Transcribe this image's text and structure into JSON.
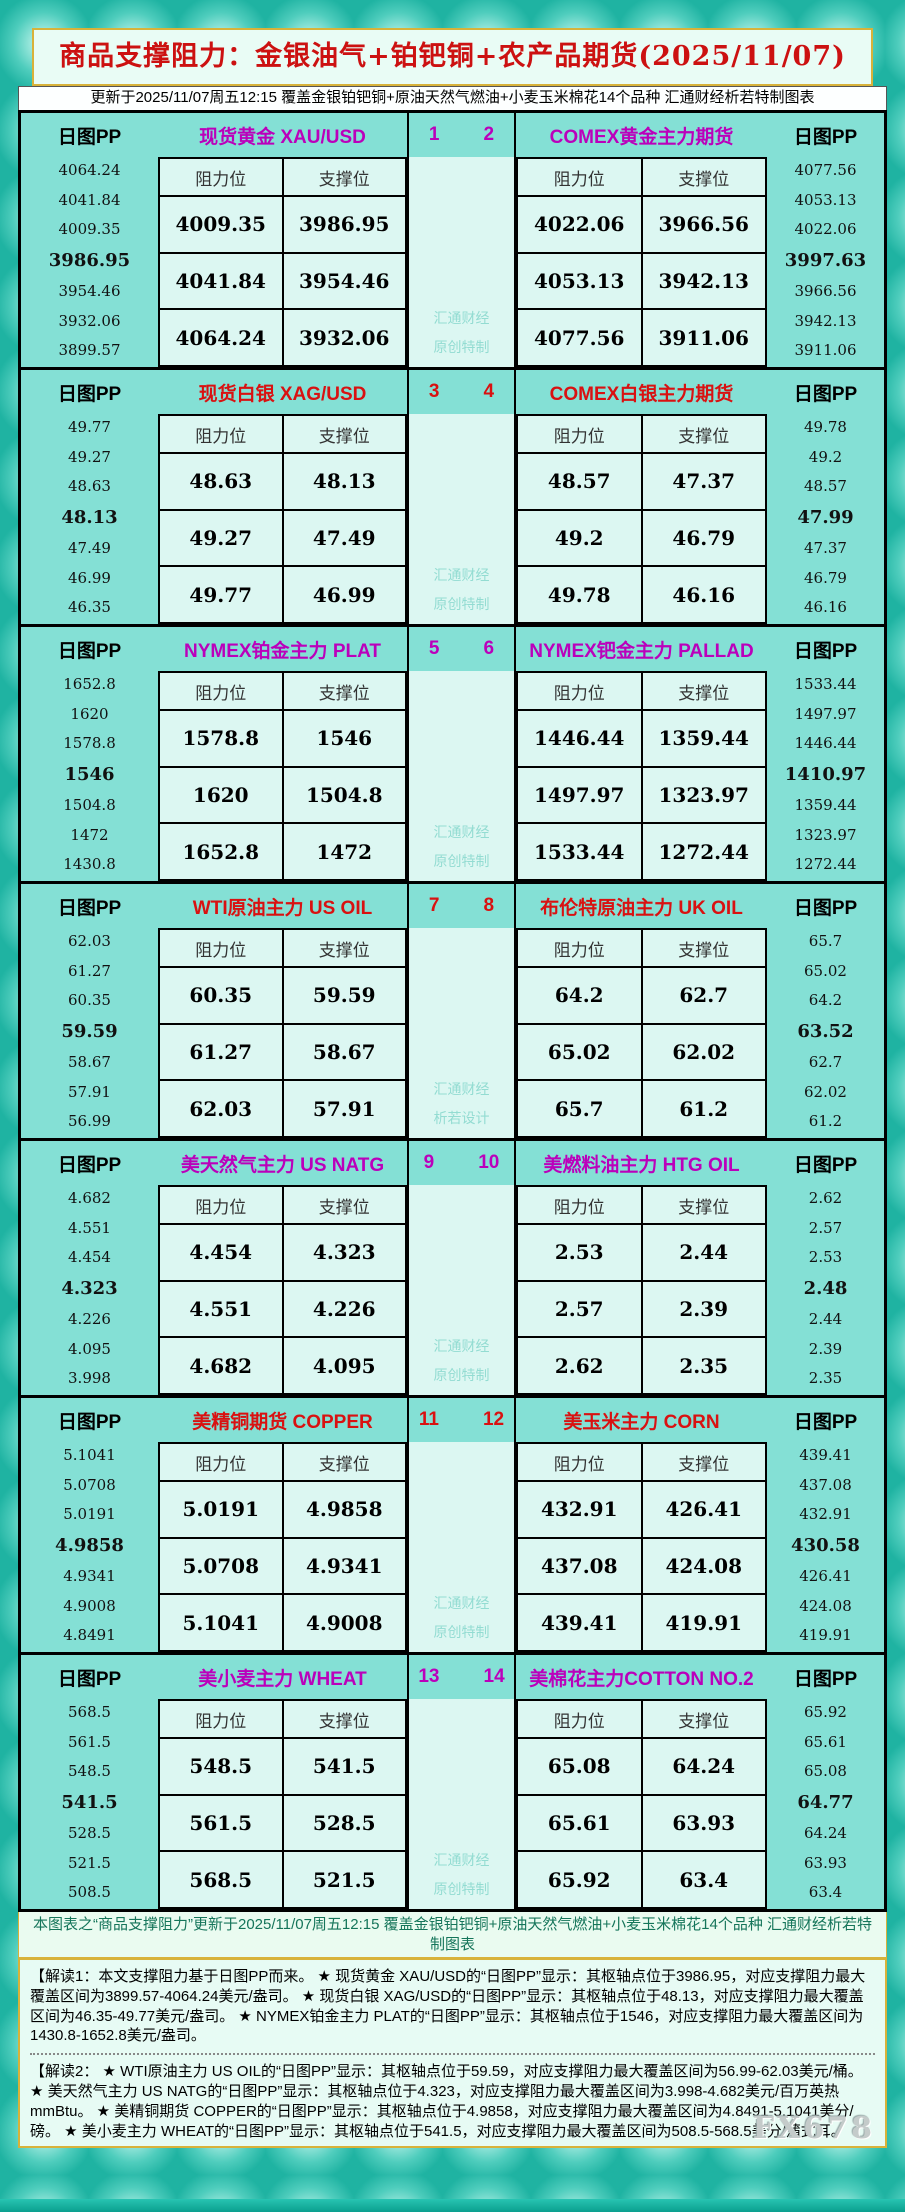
{
  "title": "商品支撑阻力：金银油气+铂钯铜+农产品期货(2025/11/07)",
  "update_line": "更新于2025/11/07周五12:15  覆盖金银铂钯铜+原油天然气燃油+小麦玉米棉花14个品种  汇通财经析若特制图表",
  "labels": {
    "pp": "日图PP",
    "resistance": "阻力位",
    "support": "支撑位",
    "watermark_top": "汇通财经"
  },
  "colors": {
    "magenta": "#bb00bb",
    "red": "#d91111",
    "title_red": "#cc1111",
    "aqua_band": "#84e0d5",
    "cell_bg": "#dcf7f2",
    "gold_border": "#d8b23a"
  },
  "chart_data": {
    "type": "table",
    "sections": [
      {
        "left_title": "现货黄金 XAU/USD",
        "right_title": "COMEX黄金主力期货",
        "num_left": "1",
        "num_right": "2",
        "accent": "#bb00bb",
        "watermark_bottom": "原创特制",
        "pivot_index": 3,
        "left_pp": [
          "4064.24",
          "4041.84",
          "4009.35",
          "3986.95",
          "3954.46",
          "3932.06",
          "3899.57"
        ],
        "left_rows": [
          [
            "4009.35",
            "3986.95"
          ],
          [
            "4041.84",
            "3954.46"
          ],
          [
            "4064.24",
            "3932.06"
          ]
        ],
        "right_rows": [
          [
            "4022.06",
            "3966.56"
          ],
          [
            "4053.13",
            "3942.13"
          ],
          [
            "4077.56",
            "3911.06"
          ]
        ],
        "right_pp": [
          "4077.56",
          "4053.13",
          "4022.06",
          "3997.63",
          "3966.56",
          "3942.13",
          "3911.06"
        ]
      },
      {
        "left_title": "现货白银 XAG/USD",
        "right_title": "COMEX白银主力期货",
        "num_left": "3",
        "num_right": "4",
        "accent": "#d91111",
        "watermark_bottom": "原创特制",
        "pivot_index": 3,
        "left_pp": [
          "49.77",
          "49.27",
          "48.63",
          "48.13",
          "47.49",
          "46.99",
          "46.35"
        ],
        "left_rows": [
          [
            "48.63",
            "48.13"
          ],
          [
            "49.27",
            "47.49"
          ],
          [
            "49.77",
            "46.99"
          ]
        ],
        "right_rows": [
          [
            "48.57",
            "47.37"
          ],
          [
            "49.2",
            "46.79"
          ],
          [
            "49.78",
            "46.16"
          ]
        ],
        "right_pp": [
          "49.78",
          "49.2",
          "48.57",
          "47.99",
          "47.37",
          "46.79",
          "46.16"
        ]
      },
      {
        "left_title": "NYMEX铂金主力 PLAT",
        "right_title": "NYMEX钯金主力 PALLAD",
        "num_left": "5",
        "num_right": "6",
        "accent": "#bb00bb",
        "watermark_bottom": "原创特制",
        "pivot_index": 3,
        "left_pp": [
          "1652.8",
          "1620",
          "1578.8",
          "1546",
          "1504.8",
          "1472",
          "1430.8"
        ],
        "left_rows": [
          [
            "1578.8",
            "1546"
          ],
          [
            "1620",
            "1504.8"
          ],
          [
            "1652.8",
            "1472"
          ]
        ],
        "right_rows": [
          [
            "1446.44",
            "1359.44"
          ],
          [
            "1497.97",
            "1323.97"
          ],
          [
            "1533.44",
            "1272.44"
          ]
        ],
        "right_pp": [
          "1533.44",
          "1497.97",
          "1446.44",
          "1410.97",
          "1359.44",
          "1323.97",
          "1272.44"
        ]
      },
      {
        "left_title": "WTI原油主力 US OIL",
        "right_title": "布伦特原油主力 UK OIL",
        "num_left": "7",
        "num_right": "8",
        "accent": "#d91111",
        "watermark_bottom": "析若设计",
        "pivot_index": 3,
        "left_pp": [
          "62.03",
          "61.27",
          "60.35",
          "59.59",
          "58.67",
          "57.91",
          "56.99"
        ],
        "left_rows": [
          [
            "60.35",
            "59.59"
          ],
          [
            "61.27",
            "58.67"
          ],
          [
            "62.03",
            "57.91"
          ]
        ],
        "right_rows": [
          [
            "64.2",
            "62.7"
          ],
          [
            "65.02",
            "62.02"
          ],
          [
            "65.7",
            "61.2"
          ]
        ],
        "right_pp": [
          "65.7",
          "65.02",
          "64.2",
          "63.52",
          "62.7",
          "62.02",
          "61.2"
        ]
      },
      {
        "left_title": "美天然气主力 US NATG",
        "right_title": "美燃料油主力 HTG OIL",
        "num_left": "9",
        "num_right": "10",
        "accent": "#bb00bb",
        "watermark_bottom": "原创特制",
        "pivot_index": 3,
        "left_pp": [
          "4.682",
          "4.551",
          "4.454",
          "4.323",
          "4.226",
          "4.095",
          "3.998"
        ],
        "left_rows": [
          [
            "4.454",
            "4.323"
          ],
          [
            "4.551",
            "4.226"
          ],
          [
            "4.682",
            "4.095"
          ]
        ],
        "right_rows": [
          [
            "2.53",
            "2.44"
          ],
          [
            "2.57",
            "2.39"
          ],
          [
            "2.62",
            "2.35"
          ]
        ],
        "right_pp": [
          "2.62",
          "2.57",
          "2.53",
          "2.48",
          "2.44",
          "2.39",
          "2.35"
        ]
      },
      {
        "left_title": "美精铜期货 COPPER",
        "right_title": "美玉米主力 CORN",
        "num_left": "11",
        "num_right": "12",
        "accent": "#d91111",
        "watermark_bottom": "原创特制",
        "pivot_index": 3,
        "left_pp": [
          "5.1041",
          "5.0708",
          "5.0191",
          "4.9858",
          "4.9341",
          "4.9008",
          "4.8491"
        ],
        "left_rows": [
          [
            "5.0191",
            "4.9858"
          ],
          [
            "5.0708",
            "4.9341"
          ],
          [
            "5.1041",
            "4.9008"
          ]
        ],
        "right_rows": [
          [
            "432.91",
            "426.41"
          ],
          [
            "437.08",
            "424.08"
          ],
          [
            "439.41",
            "419.91"
          ]
        ],
        "right_pp": [
          "439.41",
          "437.08",
          "432.91",
          "430.58",
          "426.41",
          "424.08",
          "419.91"
        ]
      },
      {
        "left_title": "美小麦主力 WHEAT",
        "right_title": "美棉花主力COTTON NO.2",
        "num_left": "13",
        "num_right": "14",
        "accent": "#bb00bb",
        "watermark_bottom": "原创特制",
        "pivot_index": 3,
        "left_pp": [
          "568.5",
          "561.5",
          "548.5",
          "541.5",
          "528.5",
          "521.5",
          "508.5"
        ],
        "left_rows": [
          [
            "548.5",
            "541.5"
          ],
          [
            "561.5",
            "528.5"
          ],
          [
            "568.5",
            "521.5"
          ]
        ],
        "right_rows": [
          [
            "65.08",
            "64.24"
          ],
          [
            "65.61",
            "63.93"
          ],
          [
            "65.92",
            "63.4"
          ]
        ],
        "right_pp": [
          "65.92",
          "65.61",
          "65.08",
          "64.77",
          "64.24",
          "63.93",
          "63.4"
        ]
      }
    ]
  },
  "footer": "本图表之“商品支撑阻力”更新于2025/11/07周五12:15  覆盖金银铂钯铜+原油天然气燃油+小麦玉米棉花14个品种  汇通财经析若特制图表",
  "notes": [
    "【解读1：本文支撑阻力基于日图PP而来。 ★ 现货黄金 XAU/USD的“日图PP”显示：其枢轴点位于3986.95，对应支撑阻力最大覆盖区间为3899.57-4064.24美元/盎司。 ★ 现货白银 XAG/USD的“日图PP”显示：其枢轴点位于48.13，对应支撑阻力最大覆盖区间为46.35-49.77美元/盎司。 ★ NYMEX铂金主力 PLAT的“日图PP”显示：其枢轴点位于1546，对应支撑阻力最大覆盖区间为1430.8-1652.8美元/盎司。",
    "【解读2： ★ WTI原油主力 US OIL的“日图PP”显示：其枢轴点位于59.59，对应支撑阻力最大覆盖区间为56.99-62.03美元/桶。 ★ 美天然气主力 US NATG的“日图PP”显示：其枢轴点位于4.323，对应支撑阻力最大覆盖区间为3.998-4.682美元/百万英热mmBtu。 ★ 美精铜期货 COPPER的“日图PP”显示：其枢轴点位于4.9858，对应支撑阻力最大覆盖区间为4.8491-5.1041美分/磅。 ★ 美小麦主力 WHEAT的“日图PP”显示：其枢轴点位于541.5，对应支撑阻力最大覆盖区间为508.5-568.5美分/蒲式耳。"
  ],
  "brand": "FX678"
}
